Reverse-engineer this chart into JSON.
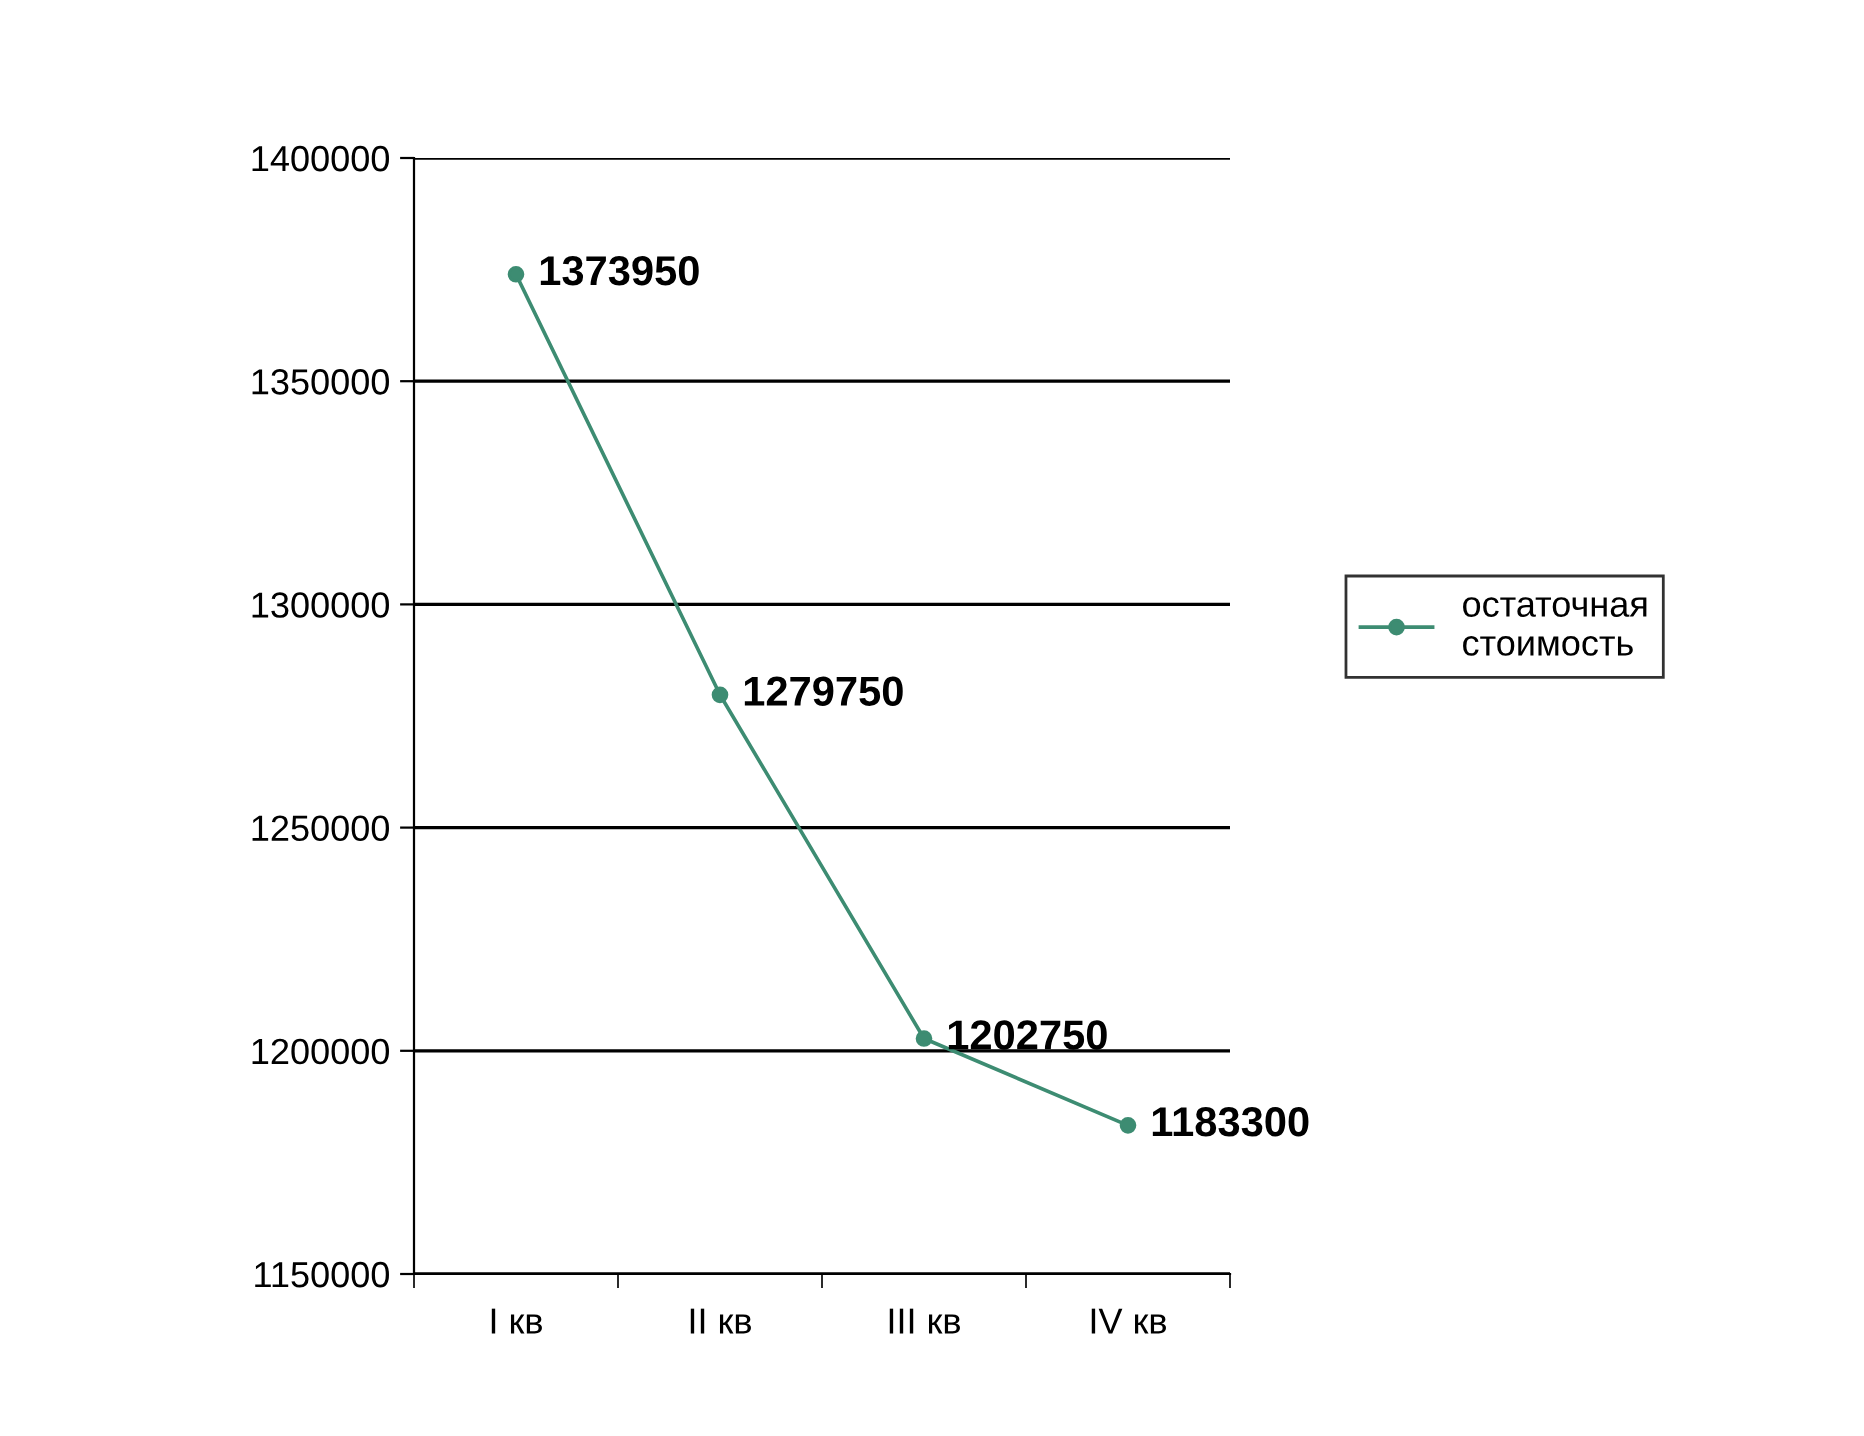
{
  "chart_data": {
    "type": "line",
    "categories": [
      "I кв",
      "II кв",
      "III кв",
      "IV кв"
    ],
    "series": [
      {
        "name": "остаточная стоимость",
        "color": "#3d8c72",
        "values": [
          1373950,
          1279750,
          1202750,
          1183300
        ]
      }
    ],
    "ylim": [
      1150000,
      1400000
    ],
    "yticks": [
      1150000,
      1200000,
      1250000,
      1300000,
      1350000,
      1400000
    ],
    "grid": "y",
    "legend": "right",
    "marker": "circle",
    "line_style": "solid",
    "data_labels": true
  }
}
